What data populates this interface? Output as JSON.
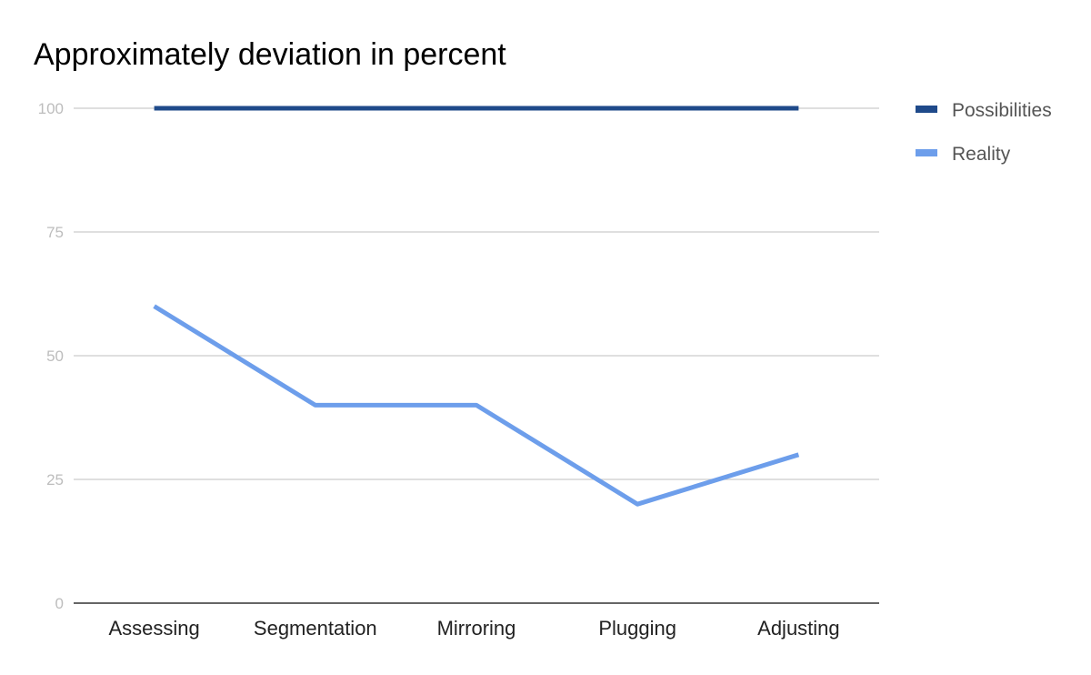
{
  "chart_data": {
    "type": "line",
    "title": "Approximately deviation in percent",
    "xlabel": "",
    "ylabel": "",
    "categories": [
      "Assessing",
      "Segmentation",
      "Mirroring",
      "Plugging",
      "Adjusting"
    ],
    "ylim": [
      0,
      100
    ],
    "yticks": [
      0,
      25,
      50,
      75,
      100
    ],
    "grid": true,
    "legend_position": "right",
    "series": [
      {
        "name": "Possibilities",
        "values": [
          100,
          100,
          100,
          100,
          100
        ],
        "color": "#1f4a8a"
      },
      {
        "name": "Reality",
        "values": [
          60,
          40,
          40,
          20,
          30
        ],
        "color": "#6d9eeb"
      }
    ]
  }
}
